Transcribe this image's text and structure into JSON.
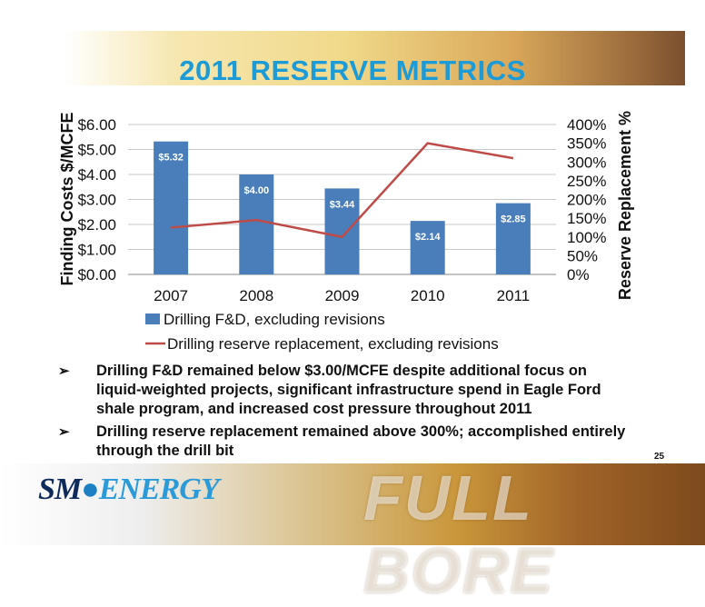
{
  "slide": {
    "title": "2011 RESERVE METRICS",
    "page_number": "25",
    "bullets": [
      "Drilling F&D remained below $3.00/MCFE despite additional focus on liquid-weighted projects, significant infrastructure spend in Eagle Ford shale program, and increased cost pressure throughout 2011",
      "Drilling reserve replacement remained above 300%; accomplished entirely through the drill bit"
    ],
    "bullet_glyph": "➢",
    "logo_sm": "SM",
    "logo_energy": "ENERGY",
    "tagline": "FULL BORE"
  },
  "chart_data": {
    "type": "bar",
    "categories": [
      "2007",
      "2008",
      "2009",
      "2010",
      "2011"
    ],
    "series": [
      {
        "name": "Drilling F&D, excluding revisions",
        "type": "bar",
        "axis": "left",
        "values": [
          5.32,
          4.0,
          3.44,
          2.14,
          2.85
        ],
        "data_labels": [
          "$5.32",
          "$4.00",
          "$3.44",
          "$2.14",
          "$2.85"
        ],
        "color": "#4a7ebb"
      },
      {
        "name": "Drilling reserve replacement, excluding revisions",
        "type": "line",
        "axis": "right",
        "values": [
          125,
          145,
          100,
          350,
          310
        ],
        "color": "#be4b48"
      }
    ],
    "ylabel": "Finding Costs $/MCFE",
    "y2label": "Reserve Replacement %",
    "ylim": [
      0,
      6
    ],
    "y2lim": [
      0,
      400
    ],
    "yticks": [
      "$0.00",
      "$1.00",
      "$2.00",
      "$3.00",
      "$4.00",
      "$5.00",
      "$6.00"
    ],
    "y2ticks": [
      "0%",
      "50%",
      "100%",
      "150%",
      "200%",
      "250%",
      "300%",
      "350%",
      "400%"
    ],
    "grid": true,
    "legend_position": "bottom"
  }
}
